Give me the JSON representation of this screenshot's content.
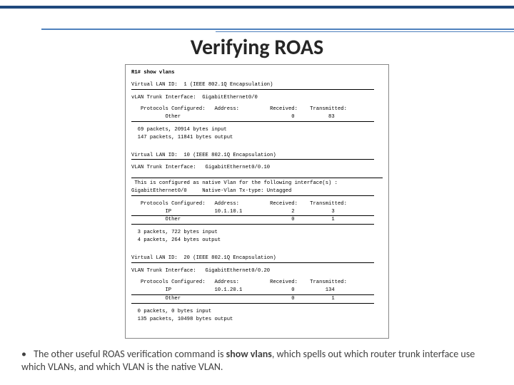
{
  "title": "Verifying ROAS",
  "terminal": {
    "cmd": "R1# show vlans",
    "vlan1": {
      "header": "Virtual LAN ID:  1 (IEEE 802.1Q Encapsulation)",
      "trunk": "vLAN Trunk Interface:  GigabitEthernet0/0",
      "protoHeader": "   Protocols Configured:   Address:          Received:    Transmitted:",
      "otherRow": "           Other                                    0           83",
      "in": "  69 packets, 20914 bytes input",
      "out": "  147 packets, 11841 bytes output"
    },
    "vlan10": {
      "header": "Virtual LAN ID:  10 (IEEE 802.1Q Encapsulation)",
      "trunk": "VLAN Trunk Interface:   GigabitEthernet0/0.10",
      "native1": " This is configured as native Vlan for the following interface(s) :",
      "native2": "GigabitEthernet0/0     Native-Vlan Tx-type: Untagged",
      "protoHeader": "   Protocols Configured:   Address:          Received:    Transmitted:",
      "ipRow": "           IP              10.1.10.1                2            3",
      "otherRow": "           Other                                    0            1",
      "in": "  3 packets, 722 bytes input",
      "out": "  4 packets, 264 bytes output"
    },
    "vlan20": {
      "header": "Virtual LAN ID:  20 (IEEE 802.1Q Encapsulation)",
      "trunk": "VLAN Trunk Interface:   GigabitEthernet0/0.20",
      "protoHeader": "   Protocols Configured:   Address:          Received:    Transmitted:",
      "ipRow": "           IP              10.1.20.1                0          134",
      "otherRow": "           Other                                    0            1",
      "in": "  0 packets, 0 bytes input",
      "out": "  135 packets, 10498 bytes output"
    }
  },
  "bullet": {
    "pre": "The other useful ROAS verification command is ",
    "bold": "show vlans",
    "post": ", which spells out which router trunk interface use which VLANs, and which VLAN is the native VLAN."
  },
  "colors": {
    "topbar": "#1f497d",
    "underline": "#4f81bd",
    "text": "#404040"
  }
}
